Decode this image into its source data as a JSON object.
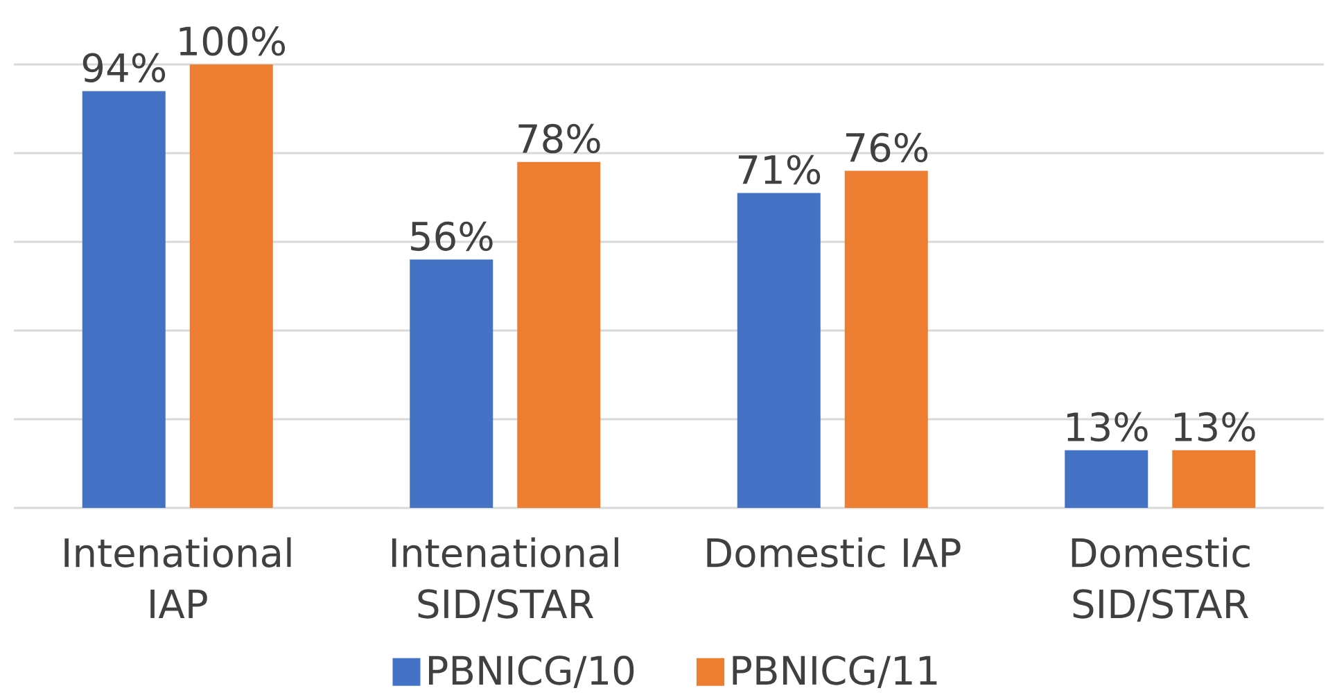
{
  "chart_data": {
    "type": "bar",
    "categories": [
      "Intenational IAP",
      "Intenational SID/STAR",
      "Domestic IAP",
      "Domestic SID/STAR"
    ],
    "series": [
      {
        "name": "PBNICG/10",
        "color": "#4472c4",
        "values": [
          94,
          56,
          71,
          13
        ],
        "value_labels": [
          "94%",
          "56%",
          "71%",
          "13%"
        ]
      },
      {
        "name": "PBNICG/11",
        "color": "#ed7d31",
        "values": [
          100,
          78,
          76,
          13
        ],
        "value_labels": [
          "100%",
          "78%",
          "76%",
          "13%"
        ]
      }
    ],
    "ylim": [
      0,
      100
    ],
    "yticks": [
      {
        "value": 0,
        "label": null
      },
      {
        "value": 20,
        "label": null
      },
      {
        "value": 40,
        "label": null
      },
      {
        "value": 60,
        "label": null
      },
      {
        "value": 80,
        "label": null
      },
      {
        "value": 100,
        "label": null
      }
    ],
    "tick_labels": "x",
    "grid": "y",
    "legend": "bottom"
  }
}
